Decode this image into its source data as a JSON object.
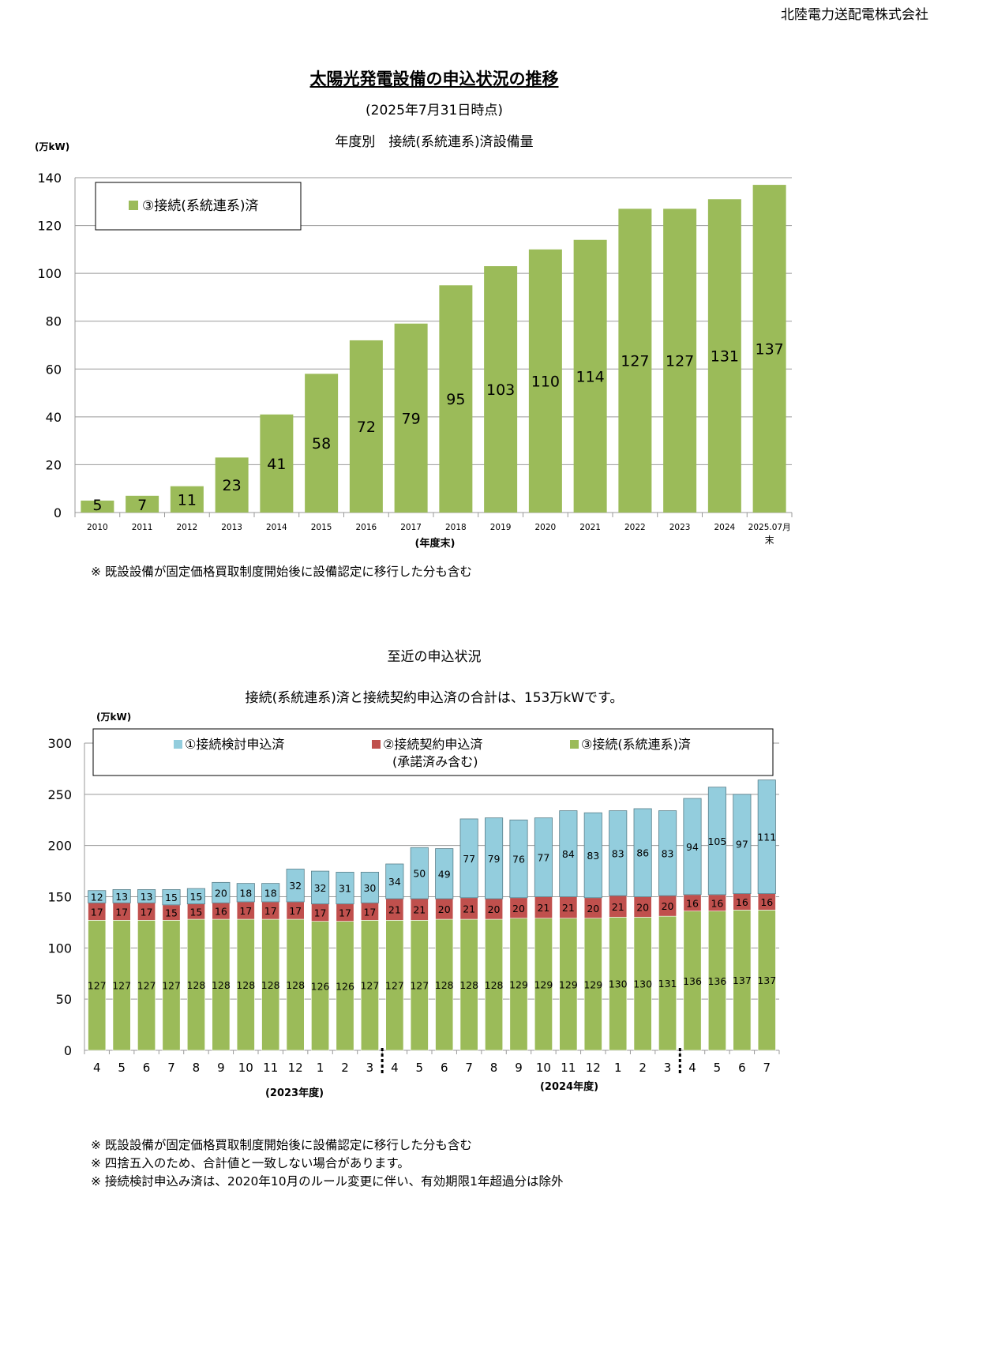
{
  "company": "北陸電力送配電株式会社",
  "title": "太陽光発電設備の申込状況の推移",
  "subtitle": "(2025年7月31日時点)",
  "chart1_title": "年度別　接続(系統連系)済設備量",
  "chart1_notes": [
    "※ 既設設備が固定価格買取制度開始後に設備認定に移行した分も含む"
  ],
  "section2_title": "至近の申込状況",
  "section2_summary": "接続(系統連系)済と接続契約申込済の合計は、153万kWです。",
  "chart2_notes": [
    "※ 既設設備が固定価格買取制度開始後に設備認定に移行した分も含む",
    "※ 四捨五入のため、合計値と一致しない場合があります。",
    "※ 接続検討申込み済は、2020年10月のルール変更に伴い、有効期限1年超過分は除外"
  ],
  "colors": {
    "green": "#9bbb59",
    "red": "#c0504d",
    "blue": "#93cddd",
    "grid": "#999999",
    "axis": "#999999"
  },
  "chart_data": [
    {
      "type": "bar",
      "unit_label": "(万kW)",
      "xlabel": "(年度末)",
      "ylim": [
        0,
        140
      ],
      "yticks": [
        0,
        20,
        40,
        60,
        80,
        100,
        120,
        140
      ],
      "grid": true,
      "legend_position": "top-left",
      "categories": [
        "2010",
        "2011",
        "2012",
        "2013",
        "2014",
        "2015",
        "2016",
        "2017",
        "2018",
        "2019",
        "2020",
        "2021",
        "2022",
        "2023",
        "2024",
        "2025.07月末"
      ],
      "series": [
        {
          "name": "③接続(系統連系)済",
          "color": "#9bbb59",
          "values": [
            5,
            7,
            11,
            23,
            41,
            58,
            72,
            79,
            95,
            103,
            110,
            114,
            127,
            127,
            131,
            137
          ]
        }
      ]
    },
    {
      "type": "bar",
      "stacked": true,
      "unit_label": "(万kW)",
      "ylim": [
        0,
        300
      ],
      "yticks": [
        0,
        50,
        100,
        150,
        200,
        250,
        300
      ],
      "grid": true,
      "legend_position": "top",
      "categories": [
        "4",
        "5",
        "6",
        "7",
        "8",
        "9",
        "10",
        "11",
        "12",
        "1",
        "2",
        "3",
        "4",
        "5",
        "6",
        "7",
        "8",
        "9",
        "10",
        "11",
        "12",
        "1",
        "2",
        "3",
        "4",
        "5",
        "6",
        "7"
      ],
      "period_labels": [
        "(2023年度)",
        "(2024年度)"
      ],
      "series": [
        {
          "name": "③接続(系統連系)済",
          "color": "#9bbb59",
          "values": [
            127,
            127,
            127,
            127,
            128,
            128,
            128,
            128,
            128,
            126,
            126,
            127,
            127,
            127,
            128,
            128,
            128,
            129,
            129,
            129,
            129,
            130,
            130,
            131,
            136,
            136,
            137,
            137
          ]
        },
        {
          "name": "②接続契約申込済",
          "name_line2": "(承諾済み含む)",
          "color": "#c0504d",
          "values": [
            17,
            17,
            17,
            15,
            15,
            16,
            17,
            17,
            17,
            17,
            17,
            17,
            21,
            21,
            20,
            21,
            20,
            20,
            21,
            21,
            20,
            21,
            20,
            20,
            16,
            16,
            16,
            16
          ]
        },
        {
          "name": "①接続検討申込済",
          "color": "#93cddd",
          "values": [
            12,
            13,
            13,
            15,
            15,
            20,
            18,
            18,
            32,
            32,
            31,
            30,
            34,
            50,
            49,
            77,
            79,
            76,
            77,
            84,
            83,
            83,
            86,
            83,
            94,
            105,
            97,
            111
          ]
        }
      ]
    }
  ]
}
